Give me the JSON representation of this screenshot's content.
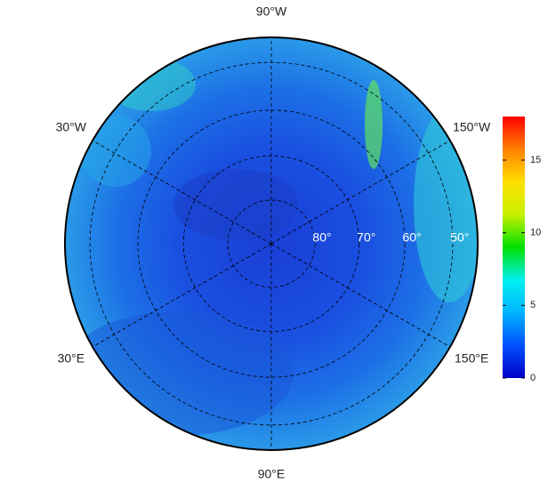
{
  "map": {
    "longitude_labels": [
      {
        "value": -90,
        "label": "90°W"
      },
      {
        "value": -30,
        "label": "30°W"
      },
      {
        "value": -150,
        "label": "150°W"
      },
      {
        "value": 30,
        "label": "30°E"
      },
      {
        "value": 150,
        "label": "150°E"
      },
      {
        "value": 90,
        "label": "90°E"
      }
    ],
    "latitude_labels": [
      {
        "value": 80,
        "label": "80°"
      },
      {
        "value": 70,
        "label": "70°"
      },
      {
        "value": 60,
        "label": "60°"
      },
      {
        "value": 50,
        "label": "50°"
      }
    ],
    "colorbar": {
      "lim": [
        0,
        18
      ],
      "ticks": [
        0,
        5,
        10,
        15
      ],
      "colors": [
        "#0000c8",
        "#0050ff",
        "#00b4ff",
        "#00f0f0",
        "#00e000",
        "#c8f000",
        "#ffe000",
        "#ff8000",
        "#ff0000"
      ]
    }
  }
}
